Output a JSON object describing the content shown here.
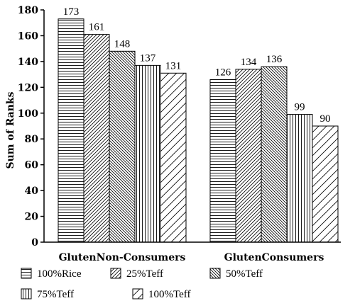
{
  "chart_data": {
    "type": "bar",
    "title": "",
    "xlabel": "",
    "ylabel": "Sum of Ranks",
    "ylim": [
      0,
      180
    ],
    "ytick_step": 20,
    "grid": false,
    "legend_position": "bottom",
    "categories": [
      "GlutenNon-Consumers",
      "GlutenConsumers"
    ],
    "series": [
      {
        "name": "100%Rice",
        "pattern": "horizontal",
        "values": [
          173,
          126
        ]
      },
      {
        "name": "25%Teff",
        "pattern": "diagonal-up",
        "values": [
          161,
          134
        ]
      },
      {
        "name": "50%Teff",
        "pattern": "diagonal-down",
        "values": [
          148,
          136
        ]
      },
      {
        "name": "75%Teff",
        "pattern": "vertical",
        "values": [
          137,
          99
        ]
      },
      {
        "name": "100%Teff",
        "pattern": "diagonal-up-sparse",
        "values": [
          131,
          90
        ]
      }
    ]
  }
}
